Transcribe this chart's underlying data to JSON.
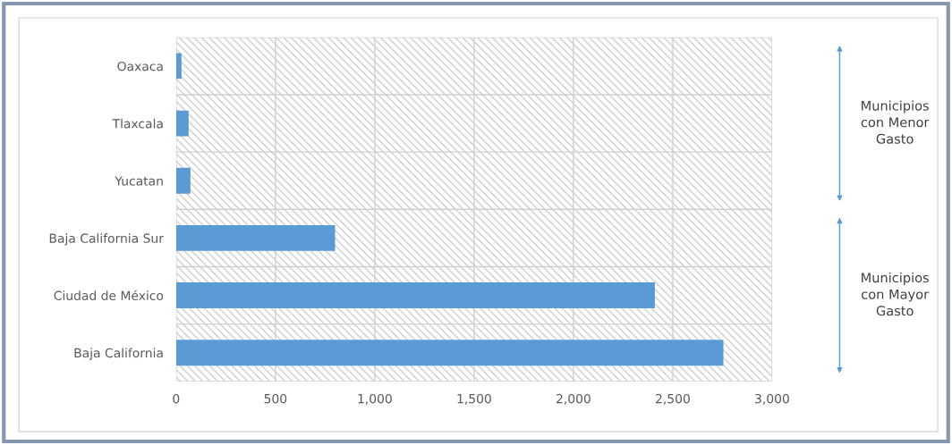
{
  "chart_data": {
    "type": "bar",
    "orientation": "horizontal",
    "categories": [
      "Oaxaca",
      "Tlaxcala",
      "Yucatan",
      "Baja California Sur",
      "Ciudad de México",
      "Baja California"
    ],
    "values": [
      27,
      63,
      72,
      800,
      2410,
      2755
    ],
    "color": "#5b9bd5",
    "xlim": [
      0,
      3000
    ],
    "xticks": [
      {
        "value": 0,
        "label": "0"
      },
      {
        "value": 500,
        "label": "500"
      },
      {
        "value": 1000,
        "label": "1,000"
      },
      {
        "value": 1500,
        "label": "1,500"
      },
      {
        "value": 2000,
        "label": "2,000"
      },
      {
        "value": 2500,
        "label": "2,500"
      },
      {
        "value": 3000,
        "label": "3,000"
      }
    ],
    "grid": true,
    "legend": false,
    "annotations": [
      "Municipios\ncon Menor\nGasto",
      "Municipios\ncon Mayor\nGasto"
    ]
  }
}
